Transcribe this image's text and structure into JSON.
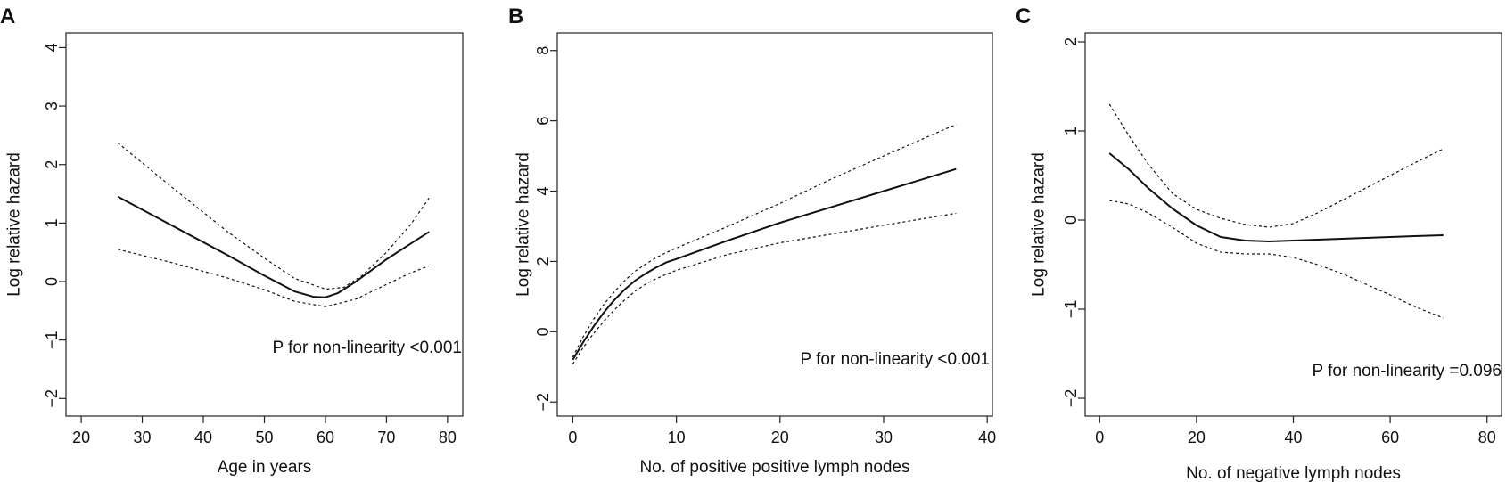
{
  "chart_data": [
    {
      "type": "line",
      "panel_label": "A",
      "title": "",
      "xlabel": "Age in  years",
      "ylabel": "Log relative hazard",
      "xlim": [
        17.5,
        82.5
      ],
      "ylim": [
        -2.3,
        4.25
      ],
      "xticks": [
        20,
        30,
        40,
        50,
        60,
        70,
        80
      ],
      "xtick_labels": [
        "20",
        "30",
        "40",
        "50",
        "60",
        "70",
        "80"
      ],
      "yticks": [
        -2,
        -1,
        0,
        1,
        2,
        3,
        4
      ],
      "ytick_labels": [
        "−2",
        "−1",
        "0",
        "1",
        "2",
        "3",
        "4"
      ],
      "annotation": "P for non-linearity <0.001",
      "series": [
        {
          "name": "estimate",
          "style": "solid",
          "x": [
            26,
            35,
            44,
            50,
            55,
            58,
            60,
            62,
            65,
            70,
            74,
            77
          ],
          "y": [
            1.45,
            0.95,
            0.45,
            0.1,
            -0.17,
            -0.26,
            -0.27,
            -0.2,
            0.0,
            0.38,
            0.65,
            0.85
          ]
        },
        {
          "name": "upper 95% CI",
          "style": "dashed",
          "x": [
            26,
            35,
            44,
            50,
            55,
            60,
            63,
            66,
            70,
            74,
            77
          ],
          "y": [
            2.37,
            1.6,
            0.85,
            0.4,
            0.05,
            -0.13,
            -0.1,
            0.1,
            0.5,
            0.98,
            1.43
          ]
        },
        {
          "name": "lower 95% CI",
          "style": "dashed",
          "x": [
            26,
            35,
            44,
            50,
            55,
            60,
            65,
            70,
            74,
            77
          ],
          "y": [
            0.55,
            0.32,
            0.06,
            -0.14,
            -0.34,
            -0.43,
            -0.3,
            -0.05,
            0.15,
            0.27
          ]
        }
      ]
    },
    {
      "type": "line",
      "panel_label": "B",
      "title": "",
      "xlabel": "No. of positive positive lymph nodes",
      "ylabel": "Log relative hazard",
      "xlim": [
        -1.5,
        40.5
      ],
      "ylim": [
        -2.4,
        8.5
      ],
      "xticks": [
        0,
        10,
        20,
        30,
        40
      ],
      "xtick_labels": [
        "0",
        "10",
        "20",
        "30",
        "40"
      ],
      "yticks": [
        -2,
        0,
        2,
        4,
        6,
        8
      ],
      "ytick_labels": [
        "−2",
        "0",
        "2",
        "4",
        "6",
        "8"
      ],
      "annotation": "P for non-linearity <0.001",
      "series": [
        {
          "name": "estimate",
          "style": "solid",
          "x": [
            0,
            1,
            2,
            3,
            4,
            5,
            6,
            7,
            8,
            9,
            10,
            15,
            20,
            25,
            30,
            37
          ],
          "y": [
            -0.8,
            -0.3,
            0.15,
            0.55,
            0.9,
            1.2,
            1.45,
            1.65,
            1.82,
            1.97,
            2.07,
            2.6,
            3.1,
            3.55,
            4.0,
            4.63
          ]
        },
        {
          "name": "upper 95% CI",
          "style": "dashed",
          "x": [
            0,
            1,
            2,
            3,
            4,
            5,
            6,
            7,
            8,
            9,
            10,
            15,
            20,
            25,
            30,
            37
          ],
          "y": [
            -0.72,
            -0.15,
            0.35,
            0.78,
            1.13,
            1.45,
            1.72,
            1.92,
            2.1,
            2.25,
            2.38,
            3.0,
            3.65,
            4.35,
            5.0,
            5.9
          ]
        },
        {
          "name": "lower 95% CI",
          "style": "dashed",
          "x": [
            0,
            1,
            2,
            3,
            4,
            5,
            6,
            7,
            8,
            9,
            10,
            15,
            20,
            25,
            30,
            37
          ],
          "y": [
            -0.92,
            -0.45,
            -0.05,
            0.3,
            0.62,
            0.9,
            1.15,
            1.35,
            1.5,
            1.63,
            1.75,
            2.2,
            2.53,
            2.78,
            3.03,
            3.37
          ]
        }
      ]
    },
    {
      "type": "line",
      "panel_label": "C",
      "title": "",
      "xlabel": "No. of  negative lymph nodes",
      "ylabel": "Log relative hazard",
      "xlim": [
        -3,
        83
      ],
      "ylim": [
        -2.2,
        2.1
      ],
      "xticks": [
        0,
        20,
        40,
        60,
        80
      ],
      "xtick_labels": [
        "0",
        "20",
        "40",
        "60",
        "80"
      ],
      "yticks": [
        -2,
        -1,
        0,
        1,
        2
      ],
      "ytick_labels": [
        "−2",
        "−1",
        "0",
        "1",
        "2"
      ],
      "annotation": "P for non-linearity =0.096",
      "series": [
        {
          "name": "estimate",
          "style": "solid",
          "x": [
            2,
            6,
            10,
            15,
            20,
            25,
            30,
            35,
            45,
            55,
            65,
            71
          ],
          "y": [
            0.75,
            0.57,
            0.36,
            0.13,
            -0.06,
            -0.19,
            -0.23,
            -0.24,
            -0.22,
            -0.2,
            -0.18,
            -0.17
          ]
        },
        {
          "name": "upper 95% CI",
          "style": "dashed",
          "x": [
            2,
            6,
            10,
            15,
            20,
            25,
            30,
            35,
            40,
            45,
            50,
            55,
            60,
            65,
            71
          ],
          "y": [
            1.3,
            0.95,
            0.63,
            0.3,
            0.12,
            0.02,
            -0.05,
            -0.08,
            -0.04,
            0.08,
            0.22,
            0.36,
            0.5,
            0.64,
            0.8
          ]
        },
        {
          "name": "lower 95% CI",
          "style": "dashed",
          "x": [
            2,
            6,
            10,
            15,
            20,
            25,
            30,
            35,
            40,
            45,
            50,
            55,
            60,
            65,
            71
          ],
          "y": [
            0.22,
            0.18,
            0.08,
            -0.08,
            -0.26,
            -0.36,
            -0.38,
            -0.38,
            -0.42,
            -0.5,
            -0.6,
            -0.72,
            -0.84,
            -0.97,
            -1.1
          ]
        }
      ]
    }
  ]
}
